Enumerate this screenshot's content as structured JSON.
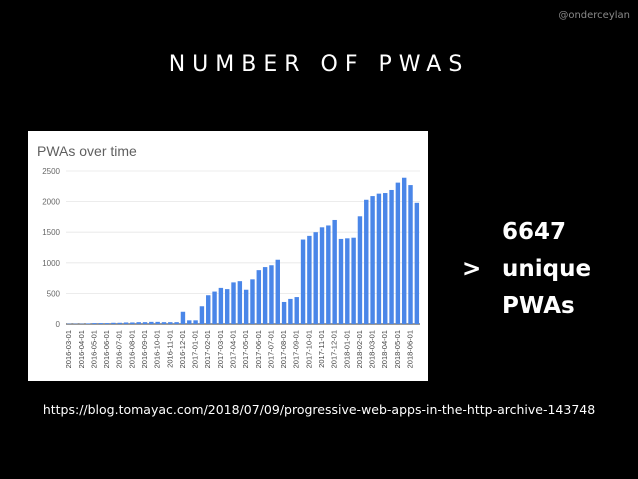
{
  "handle": "@onderceylan",
  "slide_title": "NUMBER OF PWAS",
  "stat": {
    "gt": ">",
    "number": "6647",
    "word1": "unique",
    "word2": "PWAs"
  },
  "source_url": "https://blog.tomayac.com/2018/07/09/progressive-web-apps-in-the-http-archive-143748",
  "colors": {
    "background": "#000000",
    "bar": "#4a86e8",
    "grid": "#e6e6e6"
  },
  "chart_data": {
    "type": "bar",
    "title": "PWAs over time",
    "xlabel": "",
    "ylabel": "",
    "ylim": [
      0,
      2500
    ],
    "yticks": [
      0,
      500,
      1000,
      1500,
      2000,
      2500
    ],
    "grid": true,
    "categories": [
      "2016-03-01",
      "2016-03-15",
      "2016-04-01",
      "2016-04-15",
      "2016-05-01",
      "2016-05-15",
      "2016-06-01",
      "2016-06-15",
      "2016-07-01",
      "2016-07-15",
      "2016-08-01",
      "2016-08-15",
      "2016-09-01",
      "2016-09-15",
      "2016-10-01",
      "2016-10-15",
      "2016-11-01",
      "2016-11-15",
      "2016-12-01",
      "2016-12-15",
      "2017-01-01",
      "2017-01-15",
      "2017-02-01",
      "2017-02-15",
      "2017-03-01",
      "2017-03-15",
      "2017-04-01",
      "2017-04-15",
      "2017-05-01",
      "2017-05-15",
      "2017-06-01",
      "2017-06-15",
      "2017-07-01",
      "2017-07-15",
      "2017-08-01",
      "2017-08-15",
      "2017-09-01",
      "2017-09-15",
      "2017-10-01",
      "2017-10-15",
      "2017-11-01",
      "2017-11-15",
      "2017-12-01",
      "2017-12-15",
      "2018-01-01",
      "2018-01-15",
      "2018-02-01",
      "2018-02-15",
      "2018-03-01",
      "2018-03-15",
      "2018-04-01",
      "2018-04-15",
      "2018-05-01",
      "2018-05-15",
      "2018-06-01",
      "2018-06-15"
    ],
    "tick_labels": [
      "2016-03-01",
      "2016-04-01",
      "2016-05-01",
      "2016-06-01",
      "2016-07-01",
      "2016-08-01",
      "2016-09-01",
      "2016-10-01",
      "2016-11-01",
      "2016-12-01",
      "2017-01-01",
      "2017-02-01",
      "2017-03-01",
      "2017-04-01",
      "2017-05-01",
      "2017-06-01",
      "2017-07-01",
      "2017-08-01",
      "2017-09-01",
      "2017-10-01",
      "2017-11-01",
      "2017-12-01",
      "2018-01-01",
      "2018-02-01",
      "2018-03-01",
      "2018-04-01",
      "2018-05-01",
      "2018-06-01"
    ],
    "series": [
      {
        "values": [
          5,
          5,
          5,
          10,
          15,
          15,
          15,
          20,
          20,
          25,
          25,
          30,
          30,
          35,
          35,
          30,
          30,
          30,
          200,
          60,
          60,
          290,
          470,
          530,
          590,
          570,
          680,
          700,
          560,
          730,
          880,
          930,
          960,
          1050,
          360,
          410,
          440,
          1380,
          1440,
          1500,
          1580,
          1610,
          1700,
          1390,
          1400,
          1410,
          1760,
          2030,
          2090,
          2130,
          2140,
          2190,
          2310,
          2390,
          2270,
          1980
        ]
      }
    ]
  }
}
